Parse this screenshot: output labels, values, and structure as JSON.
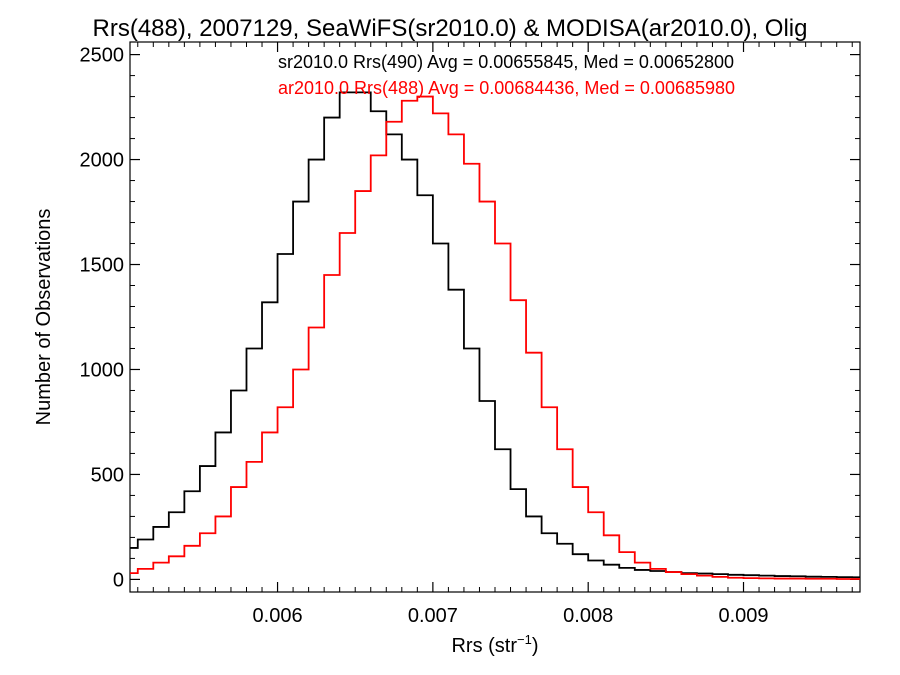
{
  "chart_data": {
    "type": "line",
    "title": "Rrs(488), 2007129, SeaWiFS(sr2010.0) & MODISA(ar2010.0), Olig",
    "xlabel_main": "Rrs (str",
    "xlabel_sup": "−1",
    "xlabel_close": ")",
    "ylabel": "Number of Observations",
    "xlim": [
      0.00505,
      0.00975
    ],
    "ylim": [
      -60,
      2560
    ],
    "x_ticks": [
      {
        "value": 0.006,
        "label": "0.006"
      },
      {
        "value": 0.007,
        "label": "0.007"
      },
      {
        "value": 0.008,
        "label": "0.008"
      },
      {
        "value": 0.009,
        "label": "0.009"
      }
    ],
    "y_ticks": [
      {
        "value": 0,
        "label": "0"
      },
      {
        "value": 500,
        "label": "500"
      },
      {
        "value": 1000,
        "label": "1000"
      },
      {
        "value": 1500,
        "label": "1500"
      },
      {
        "value": 2000,
        "label": "2000"
      },
      {
        "value": 2500,
        "label": "2500"
      }
    ],
    "grid": false,
    "legend_placement": "top-right",
    "series": [
      {
        "name": "sr2010.0 Rrs(490) Avg = 0.00655845, Med = 0.00652800",
        "color": "#000000",
        "x": [
          0.00505,
          0.0051,
          0.0052,
          0.0053,
          0.0054,
          0.0055,
          0.0056,
          0.0057,
          0.0058,
          0.0059,
          0.006,
          0.0061,
          0.0062,
          0.0063,
          0.0064,
          0.0065,
          0.0066,
          0.0067,
          0.0068,
          0.0069,
          0.007,
          0.0071,
          0.0072,
          0.0073,
          0.0074,
          0.0075,
          0.0076,
          0.0077,
          0.0078,
          0.0079,
          0.008,
          0.0081,
          0.0082,
          0.0083,
          0.0084,
          0.0085,
          0.0086,
          0.0087,
          0.0088,
          0.0089,
          0.009,
          0.0091,
          0.0092,
          0.0093,
          0.0094,
          0.0095,
          0.0096,
          0.0097,
          0.00975
        ],
        "y": [
          150,
          190,
          250,
          320,
          420,
          540,
          700,
          900,
          1100,
          1320,
          1550,
          1800,
          2000,
          2200,
          2320,
          2320,
          2230,
          2120,
          2000,
          1830,
          1600,
          1380,
          1100,
          850,
          620,
          430,
          300,
          220,
          170,
          120,
          90,
          70,
          55,
          45,
          40,
          35,
          30,
          28,
          25,
          22,
          20,
          18,
          16,
          15,
          13,
          12,
          11,
          10,
          10
        ]
      },
      {
        "name": "ar2010.0 Rrs(488) Avg = 0.00684436, Med = 0.00685980",
        "color": "#ff0000",
        "x": [
          0.00505,
          0.0051,
          0.0052,
          0.0053,
          0.0054,
          0.0055,
          0.0056,
          0.0057,
          0.0058,
          0.0059,
          0.006,
          0.0061,
          0.0062,
          0.0063,
          0.0064,
          0.0065,
          0.0066,
          0.0067,
          0.0068,
          0.0069,
          0.007,
          0.0071,
          0.0072,
          0.0073,
          0.0074,
          0.0075,
          0.0076,
          0.0077,
          0.0078,
          0.0079,
          0.008,
          0.0081,
          0.0082,
          0.0083,
          0.0084,
          0.0085,
          0.0086,
          0.0087,
          0.0088,
          0.0089,
          0.009,
          0.0091,
          0.0092,
          0.0093,
          0.0094,
          0.0095,
          0.0096,
          0.0097,
          0.00975
        ],
        "y": [
          30,
          50,
          80,
          110,
          160,
          220,
          300,
          440,
          560,
          700,
          820,
          1000,
          1200,
          1450,
          1650,
          1850,
          2020,
          2180,
          2280,
          2300,
          2220,
          2120,
          1980,
          1800,
          1600,
          1330,
          1080,
          820,
          620,
          440,
          320,
          210,
          130,
          80,
          50,
          35,
          25,
          18,
          12,
          8,
          6,
          5,
          4,
          4,
          3,
          3,
          2,
          2,
          2
        ]
      }
    ]
  }
}
